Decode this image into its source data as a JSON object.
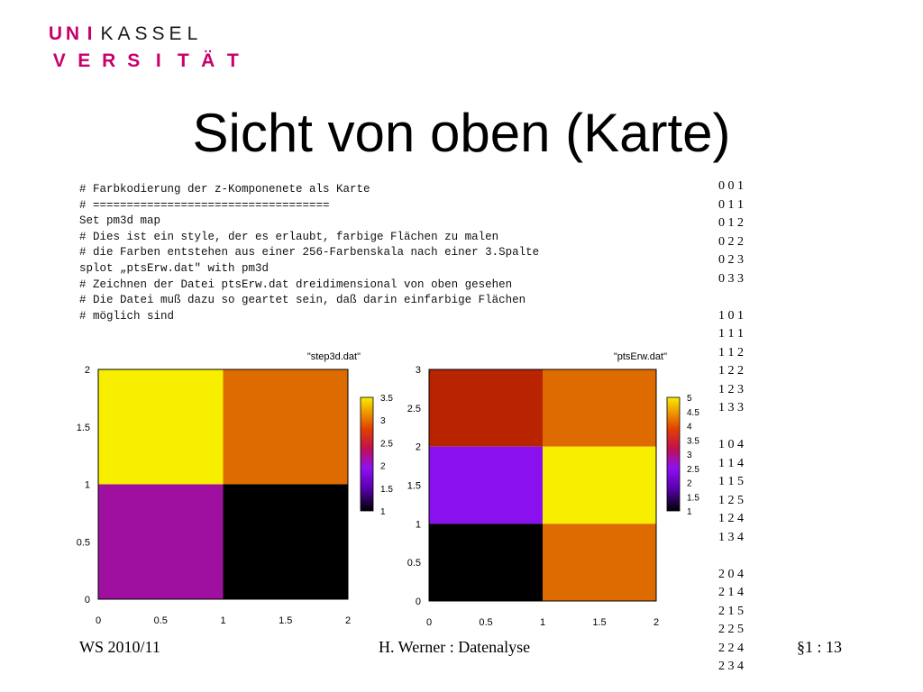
{
  "logo": {
    "row1_highlight": [
      "U",
      "N",
      "I"
    ],
    "row1_rest": [
      "K",
      "A",
      "S",
      "S",
      "E",
      "L"
    ],
    "row2": [
      "V",
      "E",
      "R",
      "S",
      "I",
      "T",
      "Ä",
      "T"
    ]
  },
  "title": "Sicht von oben (Karte)",
  "code_lines": [
    "# Farbkodierung der z-Komponenete als Karte",
    "# ===================================",
    "Set pm3d map",
    "# Dies ist ein style, der es erlaubt, farbige Flächen zu malen",
    "# die Farben entstehen aus einer 256-Farbenskala nach einer 3.Spalte",
    "splot „ptsErw.dat\" with pm3d",
    "# Zeichnen der Datei ptsErw.dat dreidimensional von oben gesehen",
    "# Die Datei muß dazu so geartet sein, daß darin einfarbige Flächen",
    "# möglich sind"
  ],
  "data_column": [
    "0 0 1",
    "0 1 1",
    "0 1 2",
    "0 2 2",
    "0 2 3",
    "0 3 3",
    "",
    "1 0 1",
    "1 1 1",
    "1 1 2",
    "1 2 2",
    "1 2 3",
    "1 3 3",
    "",
    "1 0 4",
    "1 1 4",
    "1 1 5",
    "1 2 5",
    "1 2 4",
    "1 3 4",
    "",
    "2 0 4",
    "2 1 4",
    "2 1 5",
    "2 2 5",
    "2 2 4",
    "2 3 4"
  ],
  "chart_data": [
    {
      "type": "heatmap",
      "title": "\"step3d.dat\"",
      "x_ticks": [
        "0",
        "0.5",
        "1",
        "1.5",
        "2"
      ],
      "y_ticks": [
        "0",
        "0.5",
        "1",
        "1.5",
        "2"
      ],
      "xlim": [
        0,
        2
      ],
      "ylim": [
        0,
        2
      ],
      "cells": [
        {
          "x0": 0,
          "x1": 1,
          "y0": 1,
          "y1": 2,
          "value": 3.5,
          "color": "#f8ee00"
        },
        {
          "x0": 1,
          "x1": 2,
          "y0": 1,
          "y1": 2,
          "value": 3,
          "color": "#dd6b00"
        },
        {
          "x0": 0,
          "x1": 1,
          "y0": 0,
          "y1": 1,
          "value": 2,
          "color": "#a010a0"
        },
        {
          "x0": 1,
          "x1": 2,
          "y0": 0,
          "y1": 1,
          "value": 1,
          "color": "#000000"
        }
      ],
      "colorbar_ticks": [
        "1",
        "1.5",
        "2",
        "2.5",
        "3",
        "3.5"
      ],
      "colorbar_range": [
        1,
        3.5
      ]
    },
    {
      "type": "heatmap",
      "title": "\"ptsErw.dat\"",
      "x_ticks": [
        "0",
        "0.5",
        "1",
        "1.5",
        "2"
      ],
      "y_ticks": [
        "0",
        "0.5",
        "1",
        "1.5",
        "2",
        "2.5",
        "3"
      ],
      "xlim": [
        0,
        2
      ],
      "ylim": [
        0,
        3
      ],
      "cells": [
        {
          "x0": 0,
          "x1": 1,
          "y0": 2,
          "y1": 3,
          "value": 3.9,
          "color": "#b82400"
        },
        {
          "x0": 1,
          "x1": 2,
          "y0": 2,
          "y1": 3,
          "value": 4,
          "color": "#dd6b00"
        },
        {
          "x0": 0,
          "x1": 1,
          "y0": 1,
          "y1": 2,
          "value": 2.2,
          "color": "#8a10f0"
        },
        {
          "x0": 1,
          "x1": 2,
          "y0": 1,
          "y1": 2,
          "value": 5,
          "color": "#f8ee00"
        },
        {
          "x0": 0,
          "x1": 1,
          "y0": 0,
          "y1": 1,
          "value": 1,
          "color": "#000000"
        },
        {
          "x0": 1,
          "x1": 2,
          "y0": 0,
          "y1": 1,
          "value": 4,
          "color": "#dd6b00"
        }
      ],
      "colorbar_ticks": [
        "1",
        "1.5",
        "2",
        "2.5",
        "3",
        "3.5",
        "4",
        "4.5",
        "5"
      ],
      "colorbar_range": [
        1,
        5
      ]
    }
  ],
  "footer": {
    "left": "WS 2010/11",
    "center": "H. Werner : Datenalyse",
    "right": "§1 : 13"
  }
}
